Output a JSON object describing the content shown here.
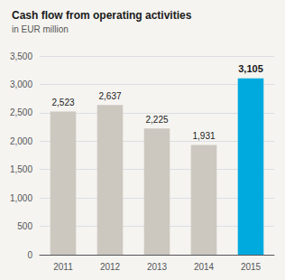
{
  "chart_data": {
    "type": "bar",
    "title": "Cash flow from operating activities",
    "subtitle": "in EUR million",
    "categories": [
      "2011",
      "2012",
      "2013",
      "2014",
      "2015"
    ],
    "values": [
      2523,
      2637,
      2225,
      1931,
      3105
    ],
    "value_labels": [
      "2,523",
      "2,637",
      "2,225",
      "1,931",
      "3,105"
    ],
    "colors": [
      "#ccc8c0",
      "#ccc8c0",
      "#ccc8c0",
      "#ccc8c0",
      "#00aadf"
    ],
    "ylim": [
      0,
      3500
    ],
    "yticks": [
      0,
      500,
      {
        "value": 1000,
        "label": "1,000"
      },
      {
        "value": 1500,
        "label": "1,500"
      },
      {
        "value": 2000,
        "label": "2,000"
      },
      {
        "value": 2500,
        "label": "2,500"
      },
      {
        "value": 3000,
        "label": "3,000"
      },
      {
        "value": 3500,
        "label": "3,500"
      }
    ],
    "grid": true,
    "data_labels": true
  }
}
